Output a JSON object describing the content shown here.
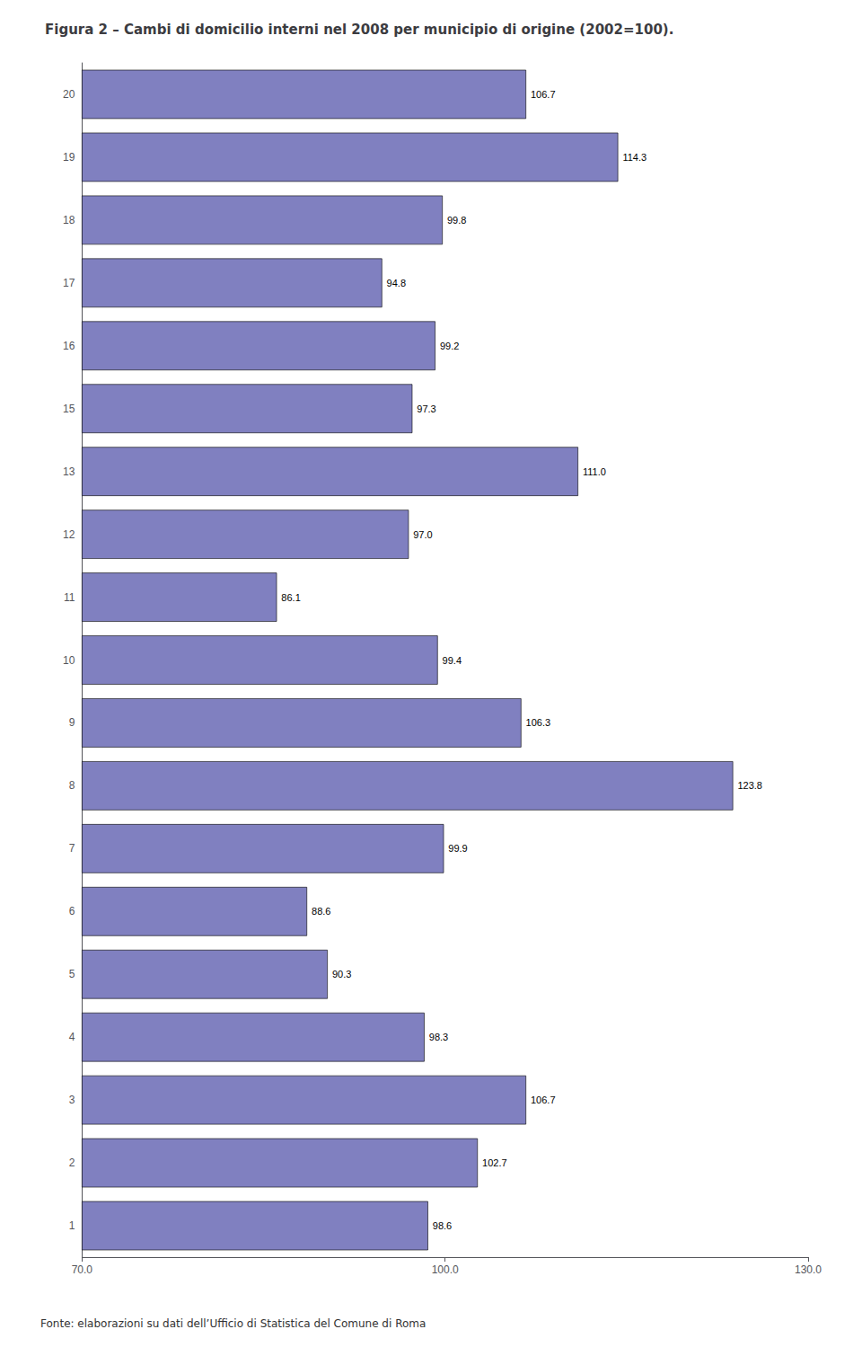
{
  "chart_data": {
    "type": "bar",
    "title": "Figura 2 – Cambi di domicilio interni nel 2008 per municipio di origine (2002=100).",
    "categories": [
      "1",
      "2",
      "3",
      "4",
      "5",
      "6",
      "7",
      "8",
      "9",
      "10",
      "11",
      "12",
      "13",
      "15",
      "16",
      "17",
      "18",
      "19",
      "20"
    ],
    "values": [
      98.6,
      102.7,
      106.7,
      98.3,
      90.3,
      88.6,
      99.9,
      123.8,
      106.3,
      99.4,
      86.1,
      97.0,
      111.0,
      97.3,
      99.2,
      94.8,
      99.8,
      114.3,
      106.7
    ],
    "value_labels": [
      "98.6",
      "102.7",
      "106.7",
      "98.3",
      "90.3",
      "88.6",
      "99.9",
      "123.8",
      "106.3",
      "99.4",
      "86.1",
      "97.0",
      "111.0",
      "97.3",
      "99.2",
      "94.8",
      "99.8",
      "114.3",
      "106.7"
    ],
    "color": "#8080c0",
    "orientation": "horizontal",
    "data_labels": true,
    "grid": false,
    "xlim": [
      70.0,
      130.0
    ],
    "xticks": [
      {
        "value": 70.0,
        "label": "70.0"
      },
      {
        "value": 100.0,
        "label": "100.0"
      },
      {
        "value": 130.0,
        "label": "130.0"
      }
    ],
    "annotations": [
      "Fonte: elaborazioni su dati dell’Ufficio di Statistica del Comune di Roma"
    ]
  }
}
